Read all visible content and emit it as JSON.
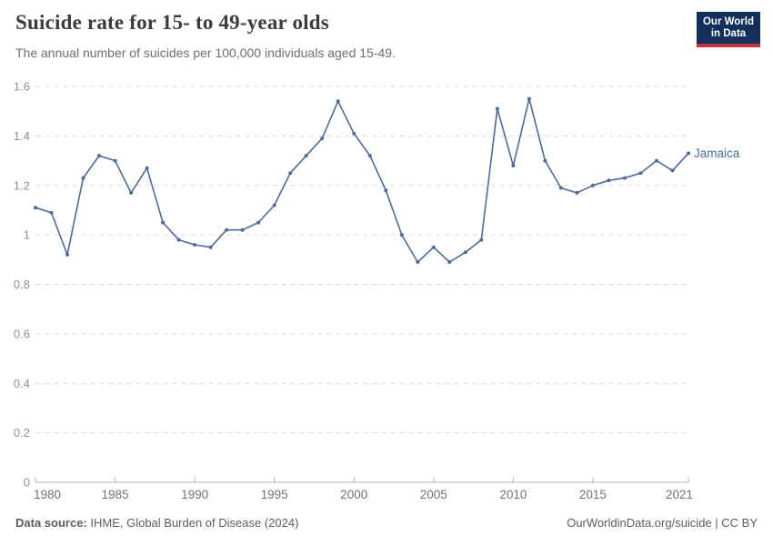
{
  "header": {
    "title": "Suicide rate for 15- to 49-year olds",
    "subtitle": "The annual number of suicides per 100,000 individuals aged 15-49.",
    "logo": {
      "line1": "Our World",
      "line2": "in Data",
      "bg_color": "#12305b",
      "accent_color": "#c0333b"
    }
  },
  "chart_data": {
    "type": "line",
    "title": "Suicide rate for 15- to 49-year olds",
    "subtitle": "The annual number of suicides per 100,000 individuals aged 15-49.",
    "xlabel": "",
    "ylabel": "",
    "ylim": [
      0,
      1.6
    ],
    "xlim": [
      1980,
      2021
    ],
    "grid": "horizontal-dashed",
    "legend_position": "end-of-line-label",
    "yticks": [
      0,
      0.2,
      0.4,
      0.6,
      0.8,
      1,
      1.2,
      1.4,
      1.6
    ],
    "ytick_labels": [
      "0",
      "0.2",
      "0.4",
      "0.6",
      "0.8",
      "1",
      "1.2",
      "1.4",
      "1.6"
    ],
    "xticks": [
      1980,
      1985,
      1990,
      1995,
      2000,
      2005,
      2010,
      2015,
      2021
    ],
    "xtick_labels": [
      "1980",
      "1985",
      "1990",
      "1995",
      "2000",
      "2005",
      "2010",
      "2015",
      "2021"
    ],
    "x": [
      1980,
      1981,
      1982,
      1983,
      1984,
      1985,
      1986,
      1987,
      1988,
      1989,
      1990,
      1991,
      1992,
      1993,
      1994,
      1995,
      1996,
      1997,
      1998,
      1999,
      2000,
      2001,
      2002,
      2003,
      2004,
      2005,
      2006,
      2007,
      2008,
      2009,
      2010,
      2011,
      2012,
      2013,
      2014,
      2015,
      2016,
      2017,
      2018,
      2019,
      2020,
      2021
    ],
    "series": [
      {
        "name": "Jamaica",
        "color": "#4c6a9c",
        "values": [
          1.11,
          1.09,
          0.92,
          1.23,
          1.32,
          1.3,
          1.17,
          1.27,
          1.05,
          0.98,
          0.96,
          0.95,
          1.02,
          1.02,
          1.05,
          1.12,
          1.25,
          1.32,
          1.39,
          1.54,
          1.41,
          1.32,
          1.18,
          1.0,
          0.89,
          0.95,
          0.89,
          0.93,
          0.98,
          1.51,
          1.28,
          1.55,
          1.3,
          1.19,
          1.17,
          1.2,
          1.22,
          1.23,
          1.25,
          1.3,
          1.26,
          1.33
        ]
      }
    ],
    "colors": {
      "gridline": "#dcdcdc",
      "axis_line": "#b3b3b3",
      "y_tick_label": "#909090",
      "x_tick_label": "#737373"
    }
  },
  "footer": {
    "source_label": "Data source:",
    "source_text": " IHME, Global Burden of Disease (2024)",
    "credit": "OurWorldinData.org/suicide | CC BY"
  }
}
